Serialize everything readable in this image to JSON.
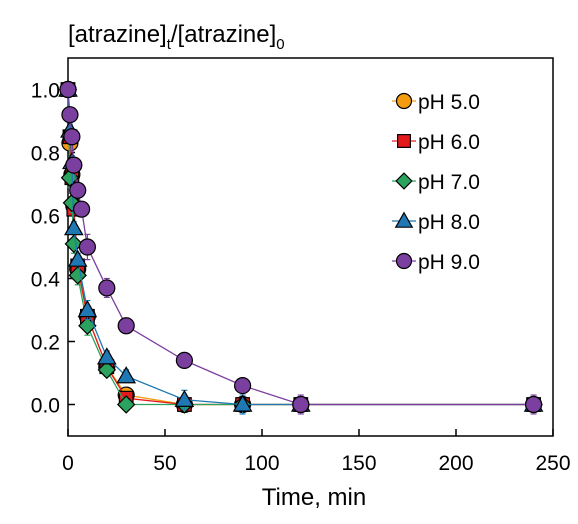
{
  "chart_data": {
    "type": "scatter",
    "title": "",
    "xlabel": "Time, min",
    "ylabel": {
      "pre": "[atrazine]",
      "sub1": "t",
      "mid": "/[atrazine]",
      "sub2": "0"
    },
    "xlim": [
      0,
      250
    ],
    "ylim": [
      -0.1,
      1.1
    ],
    "xticks": [
      0,
      50,
      100,
      150,
      200,
      250
    ],
    "yticks": [
      0.0,
      0.2,
      0.4,
      0.6,
      0.8,
      1.0
    ],
    "xtick_labels": [
      "0",
      "50",
      "100",
      "150",
      "200",
      "250"
    ],
    "ytick_labels": [
      "0.0",
      "0.2",
      "0.4",
      "0.6",
      "0.8",
      "1.0"
    ],
    "grid": false,
    "legend_position": "top-right",
    "x": [
      0,
      1,
      2,
      3,
      5,
      10,
      20,
      30,
      60,
      90,
      120,
      240
    ],
    "series": [
      {
        "name": "pH 5.0",
        "marker": "circle",
        "color": "#f39c12",
        "line_color": "#f39c12",
        "values": [
          1.0,
          0.83,
          0.73,
          0.63,
          0.43,
          0.28,
          0.12,
          0.03,
          0.0,
          0.0,
          0.0,
          0.0
        ],
        "errors": [
          0.02,
          0.02,
          0.02,
          0.02,
          0.02,
          0.02,
          0.02,
          0.01,
          0.01,
          0.0,
          0.0,
          0.0
        ]
      },
      {
        "name": "pH 6.0",
        "marker": "square",
        "color": "#e31a1c",
        "line_color": "#e31a1c",
        "values": [
          1.0,
          0.85,
          0.72,
          0.62,
          0.44,
          0.28,
          0.12,
          0.02,
          0.0,
          0.0,
          0.0,
          0.0
        ],
        "errors": [
          0.02,
          0.02,
          0.02,
          0.02,
          0.02,
          0.02,
          0.02,
          0.01,
          0.01,
          0.0,
          0.0,
          0.0
        ]
      },
      {
        "name": "pH 7.0",
        "marker": "diamond",
        "color": "#2ca25f",
        "line_color": "#2ca25f",
        "values": [
          1.0,
          0.72,
          0.64,
          0.51,
          0.41,
          0.25,
          0.11,
          0.0,
          0.0,
          0.0,
          0.0,
          0.0
        ],
        "errors": [
          0.02,
          0.03,
          0.03,
          0.03,
          0.03,
          0.03,
          0.02,
          0.01,
          0.0,
          0.0,
          0.0,
          0.0
        ]
      },
      {
        "name": "pH 8.0",
        "marker": "triangle",
        "color": "#1f78b4",
        "line_color": "#1f78b4",
        "values": [
          1.0,
          0.87,
          0.77,
          0.56,
          0.46,
          0.3,
          0.15,
          0.09,
          0.015,
          0.0,
          0.0,
          0.0
        ],
        "errors": [
          0.02,
          0.02,
          0.02,
          0.02,
          0.02,
          0.03,
          0.02,
          0.02,
          0.03,
          0.03,
          0.0,
          0.0
        ]
      },
      {
        "name": "pH 9.0",
        "marker": "circle",
        "color": "#7b3fa0",
        "line_color": "#7b3fa0",
        "values": [
          1.0,
          0.92,
          0.85,
          0.76,
          0.68,
          0.62,
          0.5,
          0.37,
          0.25,
          0.14,
          0.06,
          0.0,
          0.0
        ],
        "x": [
          0,
          1,
          2,
          3,
          5,
          7,
          10,
          20,
          30,
          60,
          90,
          120,
          240
        ],
        "errors": [
          0.02,
          0.02,
          0.02,
          0.02,
          0.02,
          0.02,
          0.04,
          0.03,
          0.02,
          0.02,
          0.02,
          0.03,
          0.03
        ]
      }
    ]
  }
}
